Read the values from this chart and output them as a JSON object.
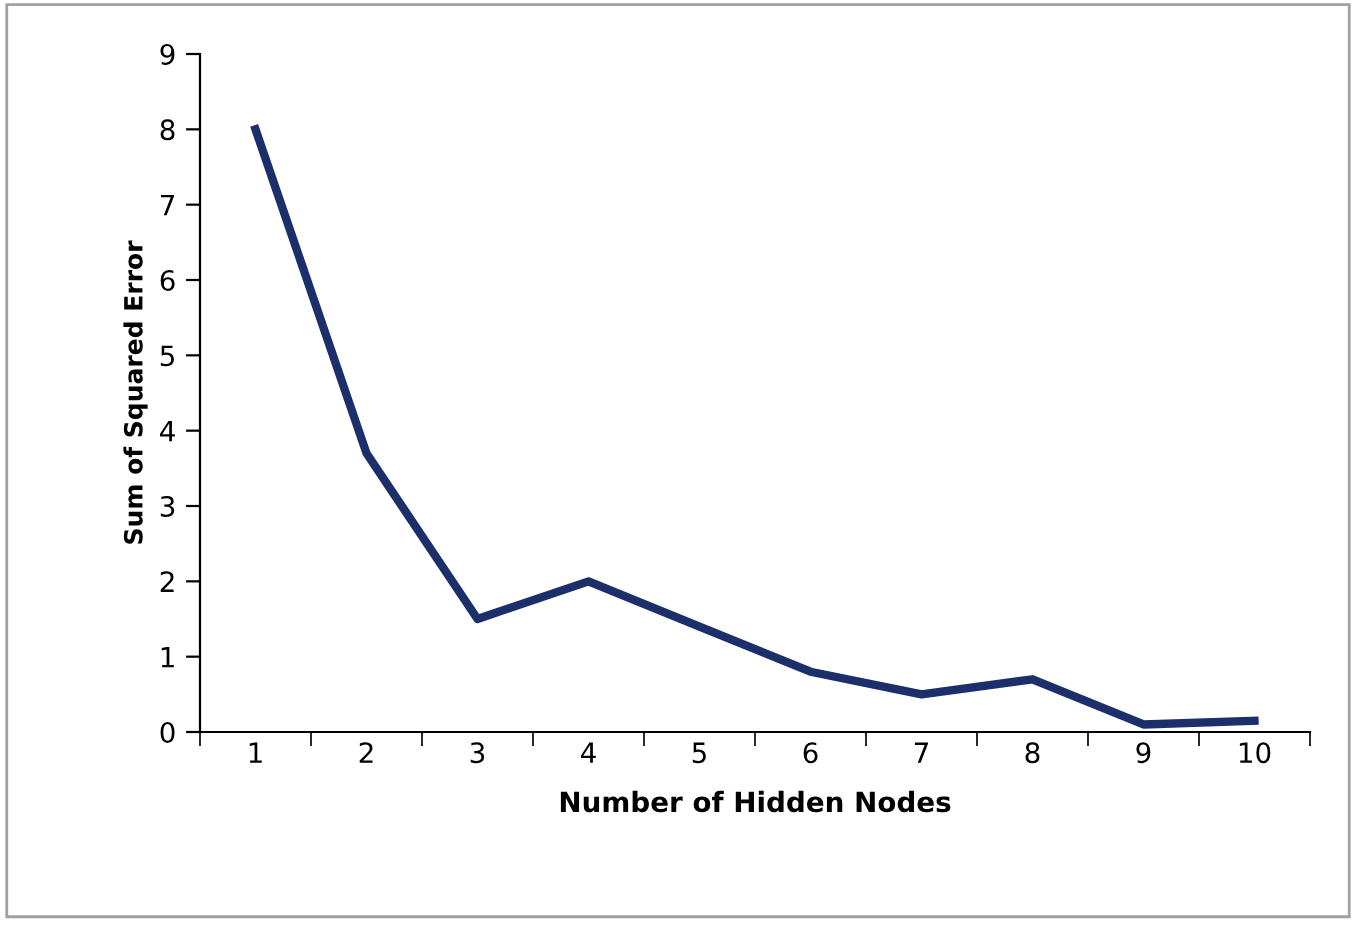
{
  "chart_data": {
    "type": "line",
    "xlabel": "Number of Hidden Nodes",
    "ylabel": "Sum of Squared Error",
    "categories": [
      "1",
      "2",
      "3",
      "4",
      "5",
      "6",
      "7",
      "8",
      "9",
      "10"
    ],
    "series": [
      {
        "color": "#1c2f6b",
        "values": [
          8,
          3.7,
          1.5,
          2,
          1.4,
          0.8,
          0.5,
          0.7,
          0.1,
          0.15
        ]
      }
    ],
    "ylim": [
      0,
      9
    ],
    "yticks": [
      0,
      1,
      2,
      3,
      4,
      5,
      6,
      7,
      8,
      9
    ],
    "grid": false,
    "legend": false,
    "marker": "none",
    "line_style": "solid"
  }
}
